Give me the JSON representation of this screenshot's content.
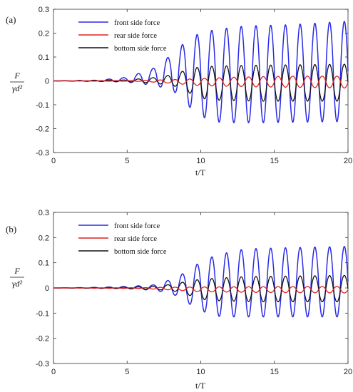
{
  "chart_data": [
    {
      "type": "line",
      "panel_label": "(a)",
      "xlabel": "t/T",
      "ylabel_top": "F",
      "ylabel_bottom": "γd²",
      "xlim": [
        0,
        20
      ],
      "ylim": [
        -0.3,
        0.3
      ],
      "xticks": [
        "0",
        "5",
        "10",
        "15",
        "20"
      ],
      "yticks": [
        "0.3",
        "0.2",
        "0.1",
        "0",
        "-0.1",
        "-0.2",
        "-0.3"
      ],
      "grid": false,
      "legend_position": "top-left",
      "series": [
        {
          "name": "front side force",
          "color": "#2a2ae8",
          "envelope": [
            [
              0,
              0
            ],
            [
              3,
              0.003
            ],
            [
              5,
              0.015
            ],
            [
              6.7,
              0.05
            ],
            [
              7.8,
              0.1
            ],
            [
              8.9,
              0.16
            ],
            [
              9.9,
              0.2
            ],
            [
              11,
              0.215
            ],
            [
              13,
              0.23
            ],
            [
              16,
              0.235
            ],
            [
              20,
              0.25
            ]
          ],
          "envelope_neg": [
            [
              0,
              0
            ],
            [
              3,
              -0.002
            ],
            [
              5,
              -0.005
            ],
            [
              7,
              -0.02
            ],
            [
              8.3,
              -0.05
            ],
            [
              9.4,
              -0.12
            ],
            [
              10.4,
              -0.16
            ],
            [
              11.4,
              -0.175
            ],
            [
              14,
              -0.175
            ],
            [
              20,
              -0.17
            ]
          ],
          "period": 1,
          "phase": 0.75
        },
        {
          "name": "rear side force",
          "color": "#e02020",
          "envelope": [
            [
              0,
              0
            ],
            [
              6,
              0.002
            ],
            [
              8,
              0.005
            ],
            [
              10,
              0.01
            ],
            [
              12,
              0.015
            ],
            [
              16,
              0.02
            ],
            [
              20,
              0.02
            ]
          ],
          "envelope_neg": [
            [
              0,
              0
            ],
            [
              6,
              -0.002
            ],
            [
              8,
              -0.01
            ],
            [
              10,
              -0.02
            ],
            [
              14,
              -0.025
            ],
            [
              20,
              -0.03
            ]
          ],
          "period": 1,
          "phase": 0.25
        },
        {
          "name": "bottom side force",
          "color": "#111111",
          "envelope": [
            [
              0,
              0
            ],
            [
              5,
              0.004
            ],
            [
              7,
              0.015
            ],
            [
              8,
              0.025
            ],
            [
              9,
              0.045
            ],
            [
              10,
              0.06
            ],
            [
              13,
              0.065
            ],
            [
              20,
              0.07
            ]
          ],
          "envelope_neg": [
            [
              0,
              0
            ],
            [
              5,
              -0.003
            ],
            [
              7,
              -0.01
            ],
            [
              8.5,
              -0.025
            ],
            [
              9.5,
              -0.06
            ],
            [
              10.5,
              -0.08
            ],
            [
              14,
              -0.085
            ],
            [
              20,
              -0.085
            ]
          ],
          "period": 1,
          "phase": 0.75
        }
      ]
    },
    {
      "type": "line",
      "panel_label": "(b)",
      "xlabel": "t/T",
      "ylabel_top": "F",
      "ylabel_bottom": "γd²",
      "xlim": [
        0,
        20
      ],
      "ylim": [
        -0.3,
        0.3
      ],
      "xticks": [
        "0",
        "5",
        "10",
        "15",
        "20"
      ],
      "yticks": [
        "0.3",
        "0.2",
        "0.1",
        "0",
        "-0.1",
        "-0.2",
        "-0.3"
      ],
      "grid": false,
      "legend_position": "top-left",
      "series": [
        {
          "name": "front side force",
          "color": "#2a2ae8",
          "envelope": [
            [
              0,
              0
            ],
            [
              3,
              0.002
            ],
            [
              5,
              0.006
            ],
            [
              6.8,
              0.012
            ],
            [
              7.8,
              0.03
            ],
            [
              8.9,
              0.06
            ],
            [
              9.9,
              0.1
            ],
            [
              11,
              0.13
            ],
            [
              13,
              0.155
            ],
            [
              16,
              0.16
            ],
            [
              20,
              0.165
            ]
          ],
          "envelope_neg": [
            [
              0,
              0
            ],
            [
              3,
              -0.001
            ],
            [
              5,
              -0.003
            ],
            [
              7,
              -0.01
            ],
            [
              8.3,
              -0.03
            ],
            [
              9.4,
              -0.07
            ],
            [
              10.4,
              -0.1
            ],
            [
              11.4,
              -0.115
            ],
            [
              14,
              -0.115
            ],
            [
              20,
              -0.115
            ]
          ],
          "period": 1,
          "phase": 0.75
        },
        {
          "name": "rear side force",
          "color": "#e02020",
          "envelope": [
            [
              0,
              0
            ],
            [
              6,
              0.001
            ],
            [
              8,
              0.003
            ],
            [
              10,
              0.004
            ],
            [
              14,
              0.005
            ],
            [
              20,
              0.006
            ]
          ],
          "envelope_neg": [
            [
              0,
              0
            ],
            [
              6,
              -0.002
            ],
            [
              8,
              -0.008
            ],
            [
              10,
              -0.015
            ],
            [
              14,
              -0.018
            ],
            [
              20,
              -0.02
            ]
          ],
          "period": 1,
          "phase": 0.25
        },
        {
          "name": "bottom side force",
          "color": "#111111",
          "envelope": [
            [
              0,
              0
            ],
            [
              5,
              0.003
            ],
            [
              7,
              0.006
            ],
            [
              8,
              0.015
            ],
            [
              9,
              0.025
            ],
            [
              10,
              0.035
            ],
            [
              13,
              0.045
            ],
            [
              20,
              0.05
            ]
          ],
          "envelope_neg": [
            [
              0,
              0
            ],
            [
              5,
              -0.002
            ],
            [
              7,
              -0.006
            ],
            [
              8.5,
              -0.015
            ],
            [
              9.5,
              -0.035
            ],
            [
              10.5,
              -0.05
            ],
            [
              14,
              -0.055
            ],
            [
              20,
              -0.055
            ]
          ],
          "period": 1,
          "phase": 0.75
        }
      ]
    }
  ]
}
